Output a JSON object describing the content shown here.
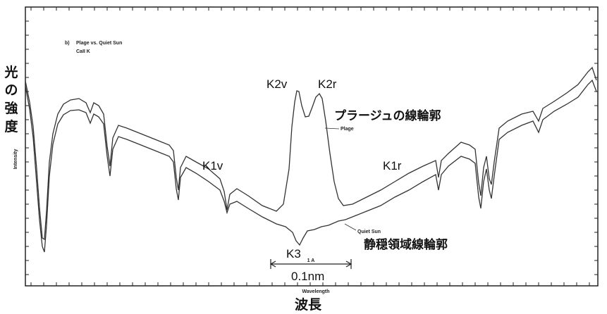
{
  "chart_data": {
    "type": "line",
    "panel_label": "b)",
    "title": "Plage vs. Quiet Sun",
    "subtitle": "CaII K",
    "xlabel": "Wavelength",
    "ylabel": "Intensity",
    "xlabel_jp": "波長",
    "ylabel_jp": [
      "光",
      "の",
      "強",
      "度"
    ],
    "grid": false,
    "series": [
      {
        "name": "Plage"
      },
      {
        "name": "Quiet Sun"
      }
    ],
    "annotations": {
      "k2v": "K2v",
      "k2r": "K2r",
      "k1v": "K1v",
      "k1r": "K1r",
      "k3": "K3",
      "scale_mark": "1 A",
      "scale_value": "0.1nm",
      "plage_jp": "プラージュの線輪郭",
      "quiet_jp": "静穏領域線輪郭"
    }
  }
}
